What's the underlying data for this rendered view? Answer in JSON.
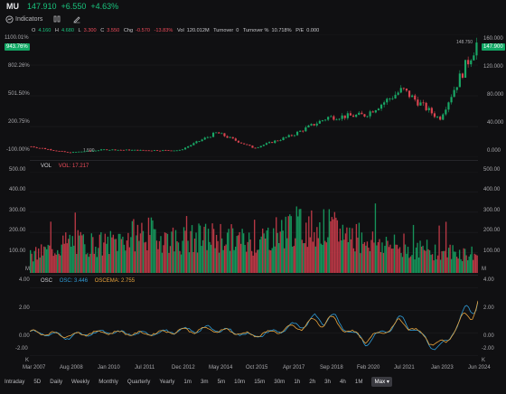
{
  "header": {
    "symbol": "MU",
    "price": "147.910",
    "change": "+6.550",
    "change_pct": "+4.63%"
  },
  "toolbar": {
    "indicators_label": "Indicators"
  },
  "ohlc": {
    "o_label": "O",
    "o": "4.160",
    "h_label": "H",
    "h": "4.680",
    "l_label": "L",
    "l": "3.300",
    "c_label": "C",
    "c": "3.550",
    "chg_label": "Chg",
    "chg": "-0.570",
    "chg_pct": "-13.83%",
    "vol_label": "Vol",
    "vol": "120.012M",
    "turnover_label": "Turnover",
    "turnover": "0",
    "turnover_pct_label": "Turnover %",
    "turnover_pct": "10.718%",
    "pe_label": "P/E",
    "pe": "0.000"
  },
  "price_panel": {
    "left_axis": [
      "1100.01%",
      "802.26%",
      "501.50%",
      "200.75%",
      "-100.00%"
    ],
    "left_tag": "943.76%",
    "right_axis": [
      "160.000",
      "120.000",
      "80.000",
      "40.000",
      "0.000"
    ],
    "right_tag": "147.900",
    "high_label": "148.750",
    "low_label": "1.590",
    "accent": "#19c37d"
  },
  "vol_panel": {
    "name": "VOL",
    "value_label": "VOL: 17.217",
    "left_axis": [
      "500.00",
      "400.00",
      "300.00",
      "200.00",
      "100.00",
      "M"
    ],
    "right_axis": [
      "500.00",
      "400.00",
      "300.00",
      "200.00",
      "100.00",
      "M"
    ]
  },
  "osc_panel": {
    "name": "OSC",
    "osc_label": "OSC: 3.446",
    "oscema_label": "OSCEMA: 2.755",
    "left_axis": [
      "4.00",
      "2.00",
      "0.00",
      "-2.00",
      "K"
    ],
    "right_axis": [
      "4.00",
      "2.00",
      "0.00",
      "-2.00",
      "K"
    ],
    "osc_color": "#2f9bd6",
    "oscema_color": "#e8a33c"
  },
  "x_axis": [
    "Mar 2007",
    "Aug 2008",
    "Jan 2010",
    "Jul 2011",
    "Dec 2012",
    "May 2014",
    "Oct 2015",
    "Apr 2017",
    "Sep 2018",
    "Feb 2020",
    "Jul 2021",
    "Jan 2023",
    "Jun 2024"
  ],
  "periods": [
    "Intraday",
    "5D",
    "Daily",
    "Weekly",
    "Monthly",
    "Quarterly",
    "Yearly",
    "1m",
    "3m",
    "5m",
    "10m",
    "15m",
    "30m",
    "1h",
    "2h",
    "3h",
    "4h",
    "1M",
    "Max"
  ],
  "selected_period": "Max",
  "chart_data": [
    {
      "type": "line",
      "title": "MU",
      "x": [
        "Mar 2007",
        "Aug 2008",
        "Jan 2010",
        "Jul 2011",
        "Dec 2012",
        "May 2014",
        "Oct 2015",
        "Apr 2017",
        "Sep 2018",
        "Feb 2020",
        "Jul 2021",
        "Jan 2023",
        "Jun 2024"
      ],
      "series": [
        {
          "values": [
            14,
            6,
            10,
            9,
            9,
            32,
            12,
            28,
            52,
            55,
            88,
            50,
            148
          ]
        }
      ],
      "ylim": [
        0,
        160
      ]
    },
    {
      "type": "bar",
      "title": "VOL",
      "x": [
        "Mar 2007",
        "Aug 2008",
        "Jan 2010",
        "Jul 2011",
        "Dec 2012",
        "May 2014",
        "Oct 2015",
        "Apr 2017",
        "Sep 2018",
        "Feb 2020",
        "Jul 2021",
        "Jan 2023",
        "Jun 2024"
      ],
      "series": [
        {
          "name": "VOL",
          "values": [
            80,
            150,
            140,
            200,
            160,
            180,
            150,
            230,
            220,
            170,
            120,
            110,
            90
          ]
        }
      ],
      "ylim": [
        0,
        500
      ]
    },
    {
      "type": "line",
      "title": "OSC",
      "x": [
        "Mar 2007",
        "Aug 2008",
        "Jan 2010",
        "Jul 2011",
        "Dec 2012",
        "May 2014",
        "Oct 2015",
        "Apr 2017",
        "Sep 2018",
        "Feb 2020",
        "Jul 2021",
        "Jan 2023",
        "Jun 2024"
      ],
      "series": [
        {
          "name": "OSC",
          "values": [
            0.1,
            -0.3,
            0.1,
            -0.1,
            0.2,
            0.4,
            -0.3,
            0.5,
            1.5,
            -0.8,
            1.2,
            -1.6,
            3.4
          ]
        },
        {
          "name": "OSCEMA",
          "values": [
            0.1,
            -0.2,
            0.1,
            -0.1,
            0.2,
            0.3,
            -0.2,
            0.4,
            1.2,
            -0.6,
            1.0,
            -1.3,
            2.8
          ]
        }
      ],
      "ylim": [
        -2.6,
        4.2
      ]
    }
  ]
}
